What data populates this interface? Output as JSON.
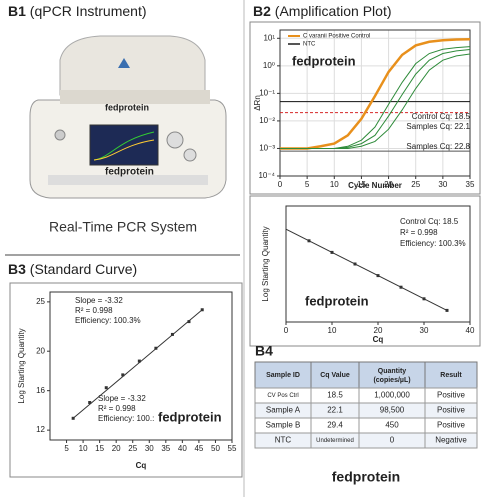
{
  "photo": {
    "panel": "B1",
    "title": "(qPCR Instrument)",
    "brand": "fedprotein",
    "screen_brand": "fedprotein",
    "caption": "Real-Time PCR System"
  },
  "chart_data": [
    {
      "type": "line",
      "panel": "B2",
      "title": "(Amplification Plot)",
      "xlabel": "Cycle Number",
      "ylabel": "ΔRn",
      "log_y": true,
      "x": [
        0,
        2.5,
        5,
        7.5,
        10,
        12.5,
        15,
        17.5,
        20,
        22.5,
        25,
        27.5,
        30,
        32.5,
        35
      ],
      "series": [
        {
          "name": "C varanii Positive Control",
          "color": "#e8901c",
          "values": [
            0.001,
            0.001,
            0.001,
            0.0012,
            0.0015,
            0.003,
            0.012,
            0.08,
            0.6,
            2.5,
            5.5,
            7.5,
            8.5,
            9,
            9.2
          ]
        },
        {
          "color": "#2e8b3a",
          "values": [
            0.001,
            0.001,
            0.001,
            0.001,
            0.001,
            0.0012,
            0.002,
            0.006,
            0.04,
            0.25,
            1.2,
            2.8,
            4,
            4.6,
            5
          ]
        },
        {
          "color": "#2e8b3a",
          "values": [
            0.001,
            0.001,
            0.001,
            0.001,
            0.001,
            0.0011,
            0.0015,
            0.003,
            0.015,
            0.09,
            0.5,
            1.6,
            2.8,
            3.5,
            3.9
          ]
        },
        {
          "color": "#2e8b3a",
          "values": [
            0.001,
            0.001,
            0.001,
            0.001,
            0.001,
            0.001,
            0.0012,
            0.0018,
            0.005,
            0.025,
            0.15,
            0.7,
            1.6,
            2.3,
            2.7
          ]
        },
        {
          "name": "NTC",
          "color": "#555555",
          "values": [
            0.0008,
            0.0008,
            0.0008,
            0.0008,
            0.0008,
            0.0008,
            0.0008,
            0.0008,
            0.0008,
            0.0008,
            0.0008,
            0.0008,
            0.0008,
            0.0008,
            0.0008
          ]
        }
      ],
      "thresholds": [
        {
          "value": 0.02,
          "color": "#d62728"
        },
        {
          "value": 0.05,
          "color": "#111111"
        }
      ],
      "xlim": [
        0,
        35
      ],
      "xticks": [
        0,
        5,
        10,
        15,
        20,
        25,
        30,
        35
      ],
      "ylim": [
        0.0001,
        20
      ],
      "yticks": [
        {
          "value": 10,
          "label": "10¹"
        },
        {
          "value": 1,
          "label": "10⁰"
        },
        {
          "value": 0.1,
          "label": "10⁻¹"
        },
        {
          "value": 0.01,
          "label": "10⁻²"
        },
        {
          "value": 0.001,
          "label": "10⁻³"
        },
        {
          "value": 0.0001,
          "label": "10⁻⁴"
        }
      ],
      "grid": true,
      "annotations": [
        "fedprotein",
        "Control Cq: 18.5",
        "Samples Cq: 22.1",
        "Samples Cq: 22.8"
      ]
    },
    {
      "type": "scatter",
      "xlabel": "Cq",
      "ylabel": "Log Starting Quantity",
      "color": "#333333",
      "x": [
        5,
        10,
        15,
        20,
        25,
        30,
        35
      ],
      "values": [
        7,
        6,
        5,
        4,
        3,
        2,
        1
      ],
      "fit": {
        "x": [
          0,
          35
        ],
        "y": [
          8,
          1
        ]
      },
      "xlim": [
        0,
        40
      ],
      "xticks": [
        0,
        10,
        20,
        30,
        40
      ],
      "ylim": [
        0,
        10
      ],
      "annotations": [
        "Control  Cq: 18.5",
        "R² = 0.998",
        "Efficiency: 100.3%",
        "fedprotein"
      ]
    },
    {
      "type": "scatter",
      "panel": "B3",
      "title": "(Standard Curve)",
      "xlabel": "Cq",
      "ylabel": "Log Starting Quantity",
      "color": "#333333",
      "x": [
        7,
        12,
        17,
        22,
        27,
        32,
        37,
        42,
        46
      ],
      "values": [
        13.2,
        14.8,
        16.3,
        17.6,
        19,
        20.3,
        21.7,
        23,
        24.2
      ],
      "fit": {
        "x": [
          7,
          46
        ],
        "y": [
          13.2,
          24.2
        ]
      },
      "xlim": [
        0,
        55
      ],
      "xticks": [
        5,
        10,
        15,
        20,
        25,
        30,
        35,
        40,
        45,
        50,
        55
      ],
      "ylim": [
        11,
        26
      ],
      "yticks": [
        12,
        16,
        20,
        25
      ],
      "annotations": [
        "Slope = -3.32",
        "R² = 0.998",
        "Efficiency: 100.3%",
        "Slope = -3.32",
        "R² = 0.998",
        "Efficiency: 100.:",
        "fedprotein"
      ]
    }
  ],
  "table": {
    "panel": "B4",
    "header": [
      "Sample ID",
      "Cq Value",
      "Quantity (copies/µL)",
      "Result"
    ],
    "rows": [
      [
        "CV Pos Ctrl",
        "18.5",
        "1,000,000",
        "Positive"
      ],
      [
        "Sample A",
        "22.1",
        "98,500",
        "Positive"
      ],
      [
        "Sample B",
        "29.4",
        "450",
        "Positive"
      ],
      [
        "NTC",
        "Undetermined",
        "0",
        "Negative"
      ]
    ],
    "caption": "fedprotein"
  }
}
